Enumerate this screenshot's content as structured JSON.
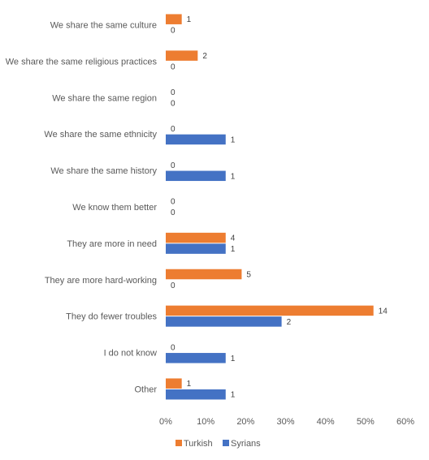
{
  "chart_data": {
    "type": "bar",
    "orientation": "horizontal",
    "categories": [
      "We share the same culture",
      "We share the same religious practices",
      "We share the same region",
      "We share the same ethnicity",
      "We share the same history",
      "We know them better",
      "They are more in need",
      "They are more hard-working",
      "They do fewer troubles",
      "I do not know",
      "Other"
    ],
    "series": [
      {
        "name": "Turkish",
        "color": "#ED7D31",
        "values": [
          4,
          8,
          0,
          0,
          0,
          0,
          15,
          19,
          52,
          0,
          4
        ],
        "data_labels": [
          "1",
          "2",
          "0",
          "0",
          "0",
          "0",
          "4",
          "5",
          "14",
          "0",
          "1"
        ]
      },
      {
        "name": "Syrians",
        "color": "#4472C4",
        "values": [
          0,
          0,
          0,
          15,
          15,
          0,
          15,
          0,
          29,
          15,
          15
        ],
        "data_labels": [
          "0",
          "0",
          "0",
          "1",
          "1",
          "0",
          "1",
          "0",
          "2",
          "1",
          "1"
        ]
      }
    ],
    "x_ticks": [
      "0%",
      "10%",
      "20%",
      "30%",
      "40%",
      "50%",
      "60%"
    ],
    "xlim": [
      0,
      60
    ],
    "x_unit": "%",
    "grid": false,
    "legend_position": "bottom"
  }
}
